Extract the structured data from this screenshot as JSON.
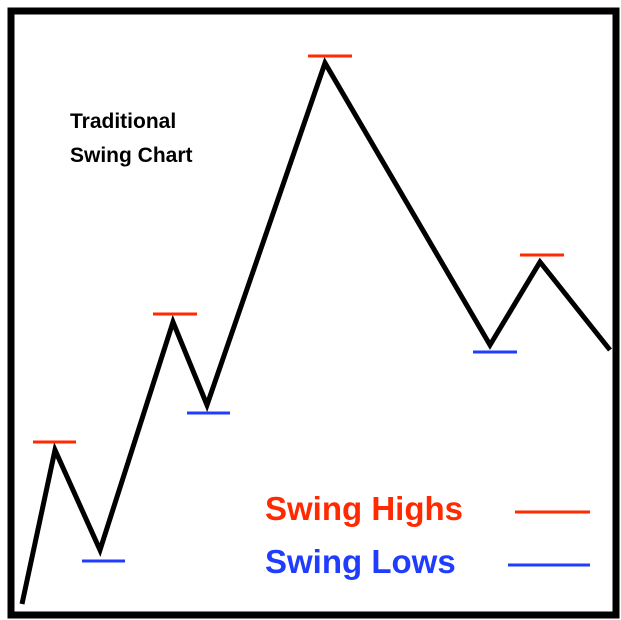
{
  "title": {
    "line1": "Traditional",
    "line2": "Swing Chart"
  },
  "legend": {
    "highs": "Swing Highs",
    "lows": "Swing Lows"
  }
}
